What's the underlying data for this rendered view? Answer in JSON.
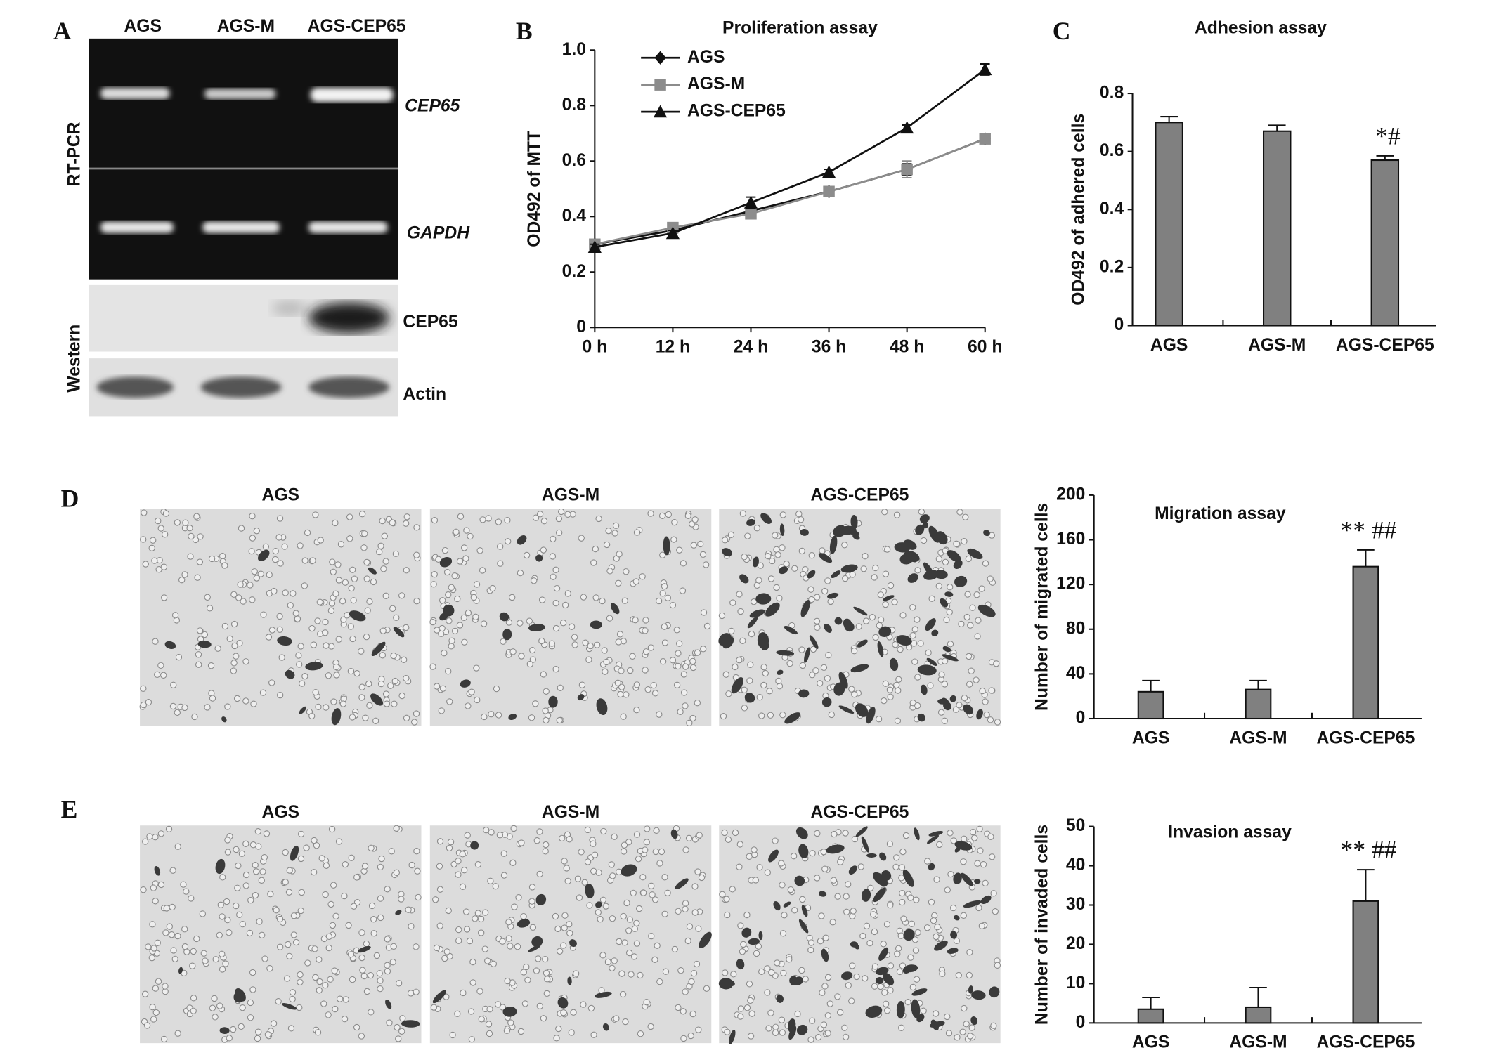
{
  "blot": {
    "panel": "A",
    "lanes": [
      "AGS",
      "AGS-M",
      "AGS-CEP65"
    ],
    "rows": [
      "RT-PCR",
      "Western"
    ],
    "bands": [
      "CEP65",
      "GAPDH",
      "CEP65",
      "Actin"
    ]
  },
  "micrographs": [
    {
      "panel": "D",
      "lanes": [
        "AGS",
        "AGS-M",
        "AGS-CEP65"
      ]
    },
    {
      "panel": "E",
      "lanes": [
        "AGS",
        "AGS-M",
        "AGS-CEP65"
      ]
    }
  ],
  "chart_data": [
    {
      "type": "line",
      "panel": "B",
      "title": "Proliferation assay",
      "y_label": "OD492 of MTT",
      "categories": [
        "0 h",
        "12 h",
        "24 h",
        "36 h",
        "48 h",
        "60 h"
      ],
      "series": [
        {
          "name": "AGS",
          "color": "#111111",
          "marker": "diamond",
          "values": [
            0.3,
            0.35,
            0.42,
            0.49,
            0.57,
            0.68
          ],
          "errors": [
            0.01,
            0.01,
            0.01,
            0.01,
            0.02,
            0.01
          ]
        },
        {
          "name": "AGS-M",
          "color": "#8c8c8c",
          "marker": "square",
          "values": [
            0.3,
            0.36,
            0.41,
            0.49,
            0.57,
            0.68
          ],
          "errors": [
            0.01,
            0.01,
            0.01,
            0.01,
            0.03,
            0.01
          ]
        },
        {
          "name": "AGS-CEP65",
          "color": "#111111",
          "marker": "triangle",
          "values": [
            0.29,
            0.34,
            0.45,
            0.56,
            0.72,
            0.93
          ],
          "errors": [
            0.01,
            0.01,
            0.02,
            0.01,
            0.01,
            0.02
          ]
        }
      ],
      "ylim": [
        0,
        1
      ],
      "yticks": [
        0,
        0.2,
        0.4,
        0.6,
        0.8,
        {
          "value": 1,
          "label": "1.0"
        }
      ],
      "legend": "upper left"
    },
    {
      "type": "bar",
      "panel": "C",
      "title": "Adhesion assay",
      "y_label": "OD492 of adhered cells",
      "categories": [
        "AGS",
        "AGS-M",
        "AGS-CEP65"
      ],
      "values": [
        0.7,
        0.67,
        0.57
      ],
      "errors": [
        0.02,
        0.02,
        0.015
      ],
      "annotations": [
        null,
        null,
        "*#"
      ],
      "color": "#808080",
      "ylim": [
        0,
        0.8
      ],
      "yticks": [
        0,
        0.2,
        0.4,
        0.6,
        0.8
      ]
    },
    {
      "type": "bar",
      "title": "Migration assay",
      "y_label": "Number of migrated cells",
      "categories": [
        "AGS",
        "AGS-M",
        "AGS-CEP65"
      ],
      "values": [
        24,
        26,
        136
      ],
      "errors": [
        10,
        8,
        15
      ],
      "annotations": [
        null,
        null,
        "** ##"
      ],
      "color": "#808080",
      "ylim": [
        0,
        200
      ],
      "yticks": [
        0,
        40,
        80,
        120,
        160,
        200
      ]
    },
    {
      "type": "bar",
      "title": "Invasion assay",
      "y_label": "Number of invaded cells",
      "categories": [
        "AGS",
        "AGS-M",
        "AGS-CEP65"
      ],
      "values": [
        3.5,
        4,
        31
      ],
      "errors": [
        3,
        5,
        8
      ],
      "annotations": [
        null,
        null,
        "** ##"
      ],
      "color": "#808080",
      "ylim": [
        0,
        50
      ],
      "yticks": [
        0,
        10,
        20,
        30,
        40,
        50
      ]
    }
  ]
}
